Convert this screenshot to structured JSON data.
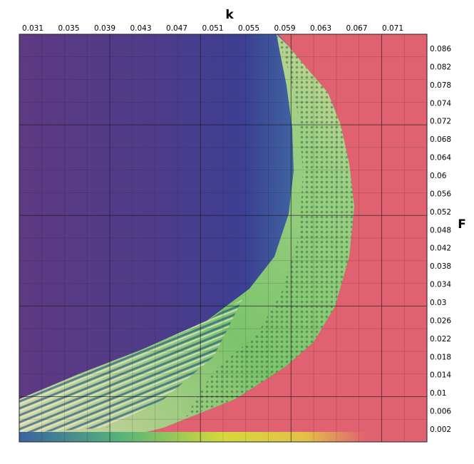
{
  "chart_data": {
    "type": "heatmap",
    "title": "",
    "xlabel": "k",
    "ylabel": "F",
    "x_ticks": [
      "0.031",
      "0.035",
      "0.039",
      "0.043",
      "0.047",
      "0.051",
      "0.055",
      "0.059",
      "0.063",
      "0.067",
      "0.071"
    ],
    "y_ticks": [
      "0.086",
      "0.082",
      "0.078",
      "0.074",
      "0.072",
      "0.068",
      "0.064",
      "0.06",
      "0.056",
      "0.052",
      "0.048",
      "0.042",
      "0.038",
      "0.034",
      "0.03",
      "0.026",
      "0.022",
      "0.018",
      "0.014",
      "0.01",
      "0.006",
      "0.002"
    ],
    "xlim": [
      0.029,
      0.0745
    ],
    "ylim": [
      0.0,
      0.088
    ],
    "x_axis_position": "top",
    "y_axis_position": "right",
    "grid": true,
    "major_grid_every": 4,
    "colors": {
      "background_low_k": "#5e3a82",
      "mid_band": "#3a3f8f",
      "transition": "#4f8fa8",
      "pattern_zone": "#78c46a",
      "pattern_light": "#e4d7a2",
      "high_k_region": "#e06270",
      "bottom_strip": "#d9d43a"
    },
    "regions": [
      {
        "name": "homogeneous-low-k",
        "description_color": "purple-blue"
      },
      {
        "name": "pattern-forming-band",
        "description_color": "green-yellow"
      },
      {
        "name": "homogeneous-high-k",
        "description_color": "red-pink"
      }
    ]
  }
}
